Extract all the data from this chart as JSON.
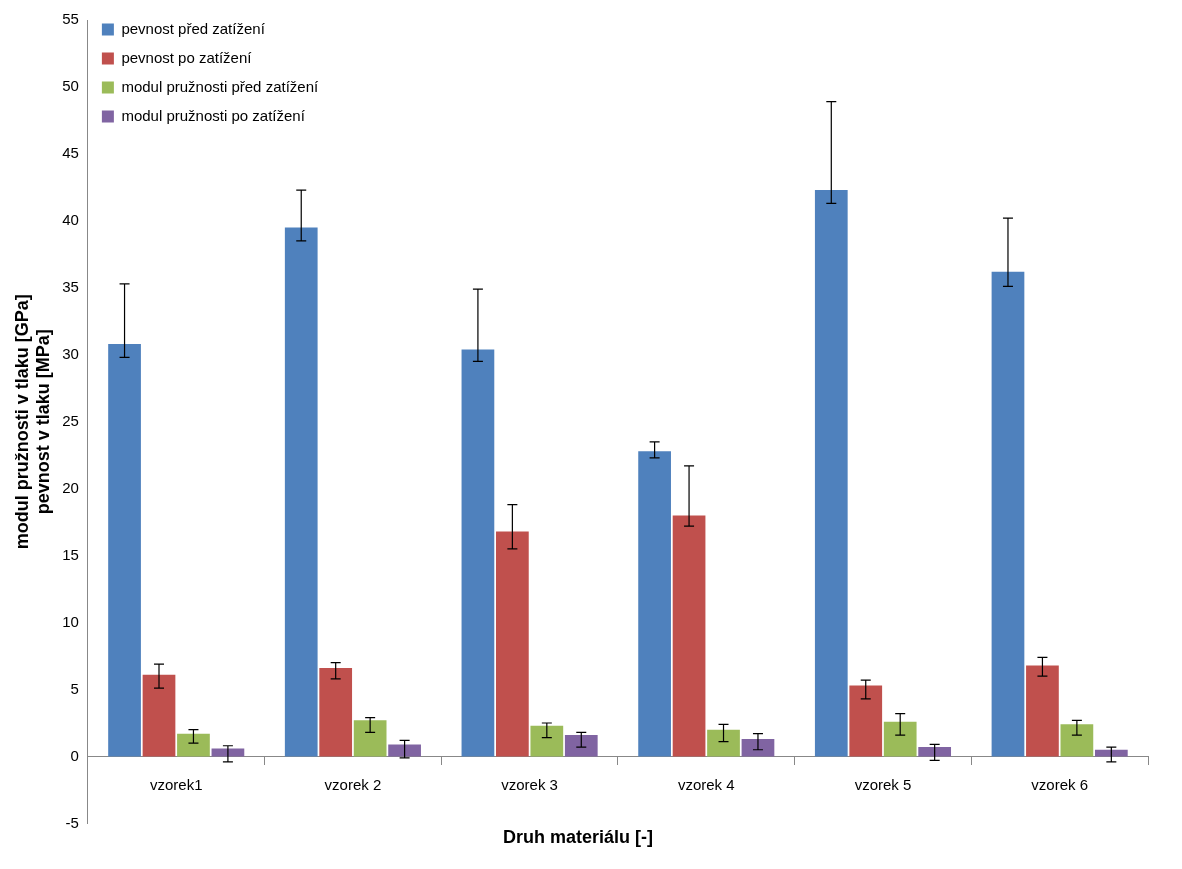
{
  "chart_data": {
    "type": "bar",
    "xlabel": "Druh materiálu [-]",
    "ylabel": "modul pružnosti v tlaku [GPa]\npevnost v tlaku [MPa]",
    "categories": [
      "vzorek1",
      "vzorek 2",
      "vzorek 3",
      "vzorek 4",
      "vzorek 5",
      "vzorek 6"
    ],
    "series": [
      {
        "name": "pevnost před zatížení",
        "color": "#4f81bd",
        "values": [
          30.8,
          39.5,
          30.4,
          22.8,
          42.3,
          36.2
        ],
        "errors": [
          [
            29.8,
            35.3
          ],
          [
            38.5,
            42.3
          ],
          [
            29.5,
            34.9
          ],
          [
            22.3,
            23.5
          ],
          [
            41.3,
            48.9
          ],
          [
            35.1,
            40.2
          ]
        ]
      },
      {
        "name": "pevnost po zatížení",
        "color": "#c0504d",
        "values": [
          6.1,
          6.6,
          16.8,
          18.0,
          5.3,
          6.8
        ],
        "errors": [
          [
            5.1,
            6.9
          ],
          [
            5.8,
            7.0
          ],
          [
            15.5,
            18.8
          ],
          [
            17.2,
            21.7
          ],
          [
            4.3,
            5.7
          ],
          [
            6.0,
            7.4
          ]
        ]
      },
      {
        "name": "modul pružnosti před zatížení",
        "color": "#9bbb59",
        "values": [
          1.7,
          2.7,
          2.3,
          2.0,
          2.6,
          2.4
        ],
        "errors": [
          [
            1.0,
            2.0
          ],
          [
            1.8,
            2.9
          ],
          [
            1.4,
            2.5
          ],
          [
            1.1,
            2.4
          ],
          [
            1.6,
            3.2
          ],
          [
            1.6,
            2.7
          ]
        ]
      },
      {
        "name": "modul pružnosti po zatížení",
        "color": "#8064a2",
        "values": [
          0.6,
          0.9,
          1.6,
          1.3,
          0.7,
          0.5
        ],
        "errors": [
          [
            -0.4,
            0.8
          ],
          [
            -0.1,
            1.2
          ],
          [
            0.7,
            1.8
          ],
          [
            0.5,
            1.7
          ],
          [
            -0.3,
            0.9
          ],
          [
            -0.4,
            0.7
          ]
        ]
      }
    ],
    "ylim": [
      -5,
      55
    ],
    "yticks": [
      -5,
      0,
      5,
      10,
      15,
      20,
      25,
      30,
      35,
      40,
      45,
      50,
      55
    ],
    "grid": false,
    "legend": "top"
  }
}
